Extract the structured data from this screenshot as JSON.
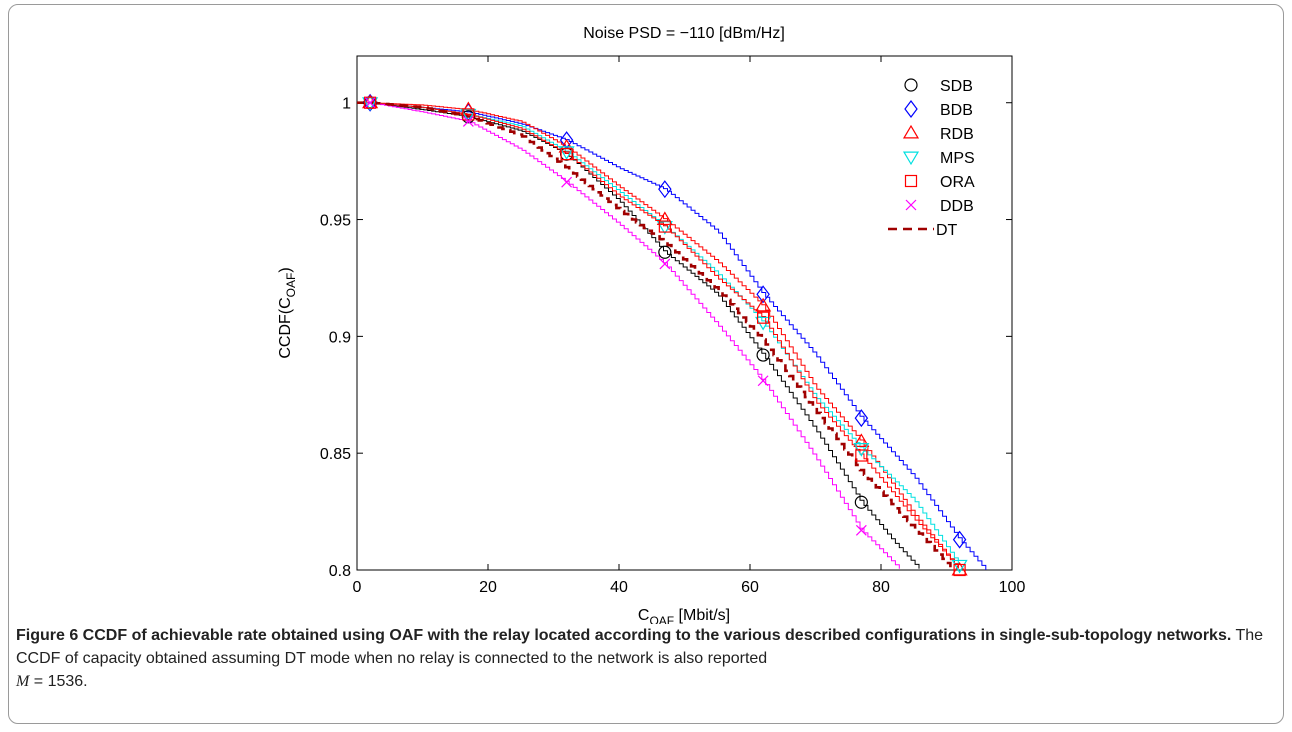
{
  "chart_data": {
    "type": "line",
    "title": "Noise PSD = −110 [dBm/Hz]",
    "xlabel_main": "C",
    "xlabel_sub": "OAF",
    "xlabel_unit": " [Mbit/s]",
    "ylabel_main": "CCDF(C",
    "ylabel_sub": "OAF",
    "ylabel_end": ")",
    "xlim": [
      0,
      100
    ],
    "ylim": [
      0.8,
      1.02
    ],
    "xticks": [
      0,
      20,
      40,
      60,
      80,
      100
    ],
    "yticks": [
      0.8,
      0.85,
      0.9,
      0.95,
      1
    ],
    "ytick_labels": [
      "0.8",
      "0.85",
      "0.9",
      "0.95",
      "1"
    ],
    "grid": false,
    "legend_position": "top-right",
    "marker_x": [
      2,
      17,
      32,
      47,
      62,
      77,
      92
    ],
    "series": [
      {
        "name": "SDB",
        "color": "#000000",
        "marker": "circle",
        "dash": false,
        "x": [
          0,
          2,
          10,
          17,
          25,
          32,
          40,
          47,
          55,
          62,
          70,
          77,
          82,
          86
        ],
        "y": [
          1.0,
          1.0,
          0.997,
          0.994,
          0.988,
          0.978,
          0.958,
          0.936,
          0.918,
          0.892,
          0.86,
          0.829,
          0.812,
          0.8
        ]
      },
      {
        "name": "BDB",
        "color": "#0000ff",
        "marker": "diamond",
        "dash": false,
        "x": [
          0,
          2,
          10,
          17,
          25,
          32,
          40,
          47,
          55,
          62,
          70,
          77,
          85,
          92,
          96
        ],
        "y": [
          1.0,
          1.0,
          0.998,
          0.996,
          0.991,
          0.984,
          0.972,
          0.963,
          0.945,
          0.918,
          0.892,
          0.865,
          0.84,
          0.813,
          0.8
        ]
      },
      {
        "name": "RDB",
        "color": "#ff0000",
        "marker": "triangle-up",
        "dash": false,
        "x": [
          0,
          2,
          10,
          17,
          25,
          32,
          40,
          47,
          55,
          62,
          70,
          77,
          85,
          92
        ],
        "y": [
          1.0,
          1.0,
          0.999,
          0.997,
          0.992,
          0.981,
          0.964,
          0.95,
          0.932,
          0.913,
          0.878,
          0.855,
          0.824,
          0.8
        ]
      },
      {
        "name": "MPS",
        "color": "#00e0e0",
        "marker": "triangle-down",
        "dash": false,
        "x": [
          0,
          2,
          10,
          17,
          25,
          32,
          40,
          47,
          55,
          62,
          70,
          77,
          85,
          92
        ],
        "y": [
          1.0,
          1.0,
          0.998,
          0.995,
          0.99,
          0.979,
          0.962,
          0.947,
          0.927,
          0.906,
          0.874,
          0.852,
          0.83,
          0.802
        ]
      },
      {
        "name": "ORA",
        "color": "#ff0000",
        "marker": "square",
        "dash": false,
        "x": [
          0,
          2,
          10,
          17,
          25,
          32,
          40,
          47,
          55,
          62,
          70,
          77,
          85,
          92
        ],
        "y": [
          1.0,
          1.0,
          0.998,
          0.995,
          0.989,
          0.978,
          0.96,
          0.947,
          0.925,
          0.908,
          0.872,
          0.849,
          0.822,
          0.8
        ]
      },
      {
        "name": "DDB",
        "color": "#ff00ff",
        "marker": "x",
        "dash": false,
        "x": [
          0,
          2,
          10,
          17,
          25,
          32,
          40,
          47,
          55,
          62,
          70,
          77,
          83
        ],
        "y": [
          1.0,
          1.0,
          0.996,
          0.992,
          0.98,
          0.966,
          0.948,
          0.931,
          0.905,
          0.881,
          0.848,
          0.817,
          0.8
        ]
      },
      {
        "name": "DT",
        "color": "#a00000",
        "marker": "none",
        "dash": true,
        "x": [
          0,
          2,
          10,
          17,
          25,
          32,
          40,
          47,
          55,
          62,
          70,
          77,
          85,
          91
        ],
        "y": [
          1.0,
          1.0,
          0.998,
          0.994,
          0.986,
          0.972,
          0.954,
          0.94,
          0.92,
          0.898,
          0.868,
          0.842,
          0.818,
          0.8
        ]
      }
    ]
  },
  "caption": {
    "lead": "Figure 6 CCDF of achievable rate obtained using OAF with the relay located according to the various described configurations in single-sub-topology networks.",
    "body": " The CCDF of capacity obtained assuming DT mode when no relay is connected to the network is also reported",
    "m_var": "M",
    "m_value": " = 1536."
  }
}
